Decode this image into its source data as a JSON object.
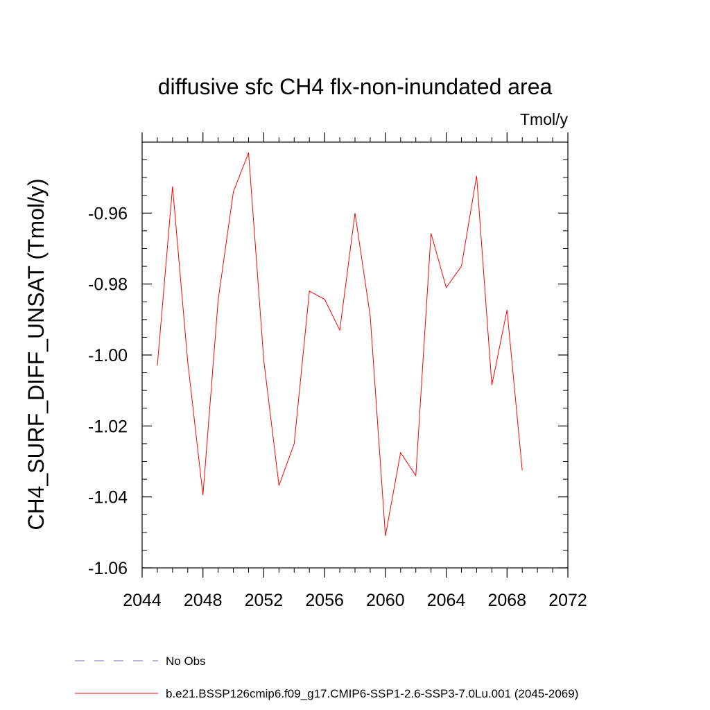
{
  "chart_data": {
    "type": "line",
    "title": "diffusive sfc CH4 flx-non-inundated area",
    "units_label": "Tmol/y",
    "xlabel": "",
    "ylabel": "CH4_SURF_DIFF_UNSAT  (Tmol/y)",
    "xlim": [
      2044,
      2072
    ],
    "ylim": [
      -1.06,
      -0.94
    ],
    "x_ticks": [
      "2044",
      "2048",
      "2052",
      "2056",
      "2060",
      "2064",
      "2068",
      "2072"
    ],
    "y_ticks": [
      "-1.06",
      "-1.04",
      "-1.02",
      "-1.00",
      "-0.98",
      "-0.96"
    ],
    "grid": false,
    "legend_position": "bottom-left",
    "series": [
      {
        "name": "No Obs",
        "color": "#7b6fb0",
        "style": "dashed",
        "x": [],
        "y": []
      },
      {
        "name": "b.e21.BSSP126cmip6.f09_g17.CMIP6-SSP1-2.6-SSP3-7.0Lu.001 (2045-2069)",
        "color": "#ff0000",
        "style": "solid",
        "x": [
          2045,
          2046,
          2047,
          2048,
          2049,
          2050,
          2051,
          2052,
          2053,
          2054,
          2055,
          2056,
          2057,
          2058,
          2059,
          2060,
          2061,
          2062,
          2063,
          2064,
          2065,
          2066,
          2067,
          2068,
          2069
        ],
        "y": [
          -1.003,
          -0.9525,
          -1.002,
          -1.0395,
          -0.9845,
          -0.954,
          -0.943,
          -1.0015,
          -1.0368,
          -1.025,
          -0.982,
          -0.9843,
          -0.993,
          -0.96,
          -0.989,
          -1.051,
          -1.0275,
          -1.034,
          -0.9657,
          -0.981,
          -0.975,
          -0.9495,
          -1.0085,
          -0.9873,
          -1.0325
        ]
      }
    ]
  }
}
